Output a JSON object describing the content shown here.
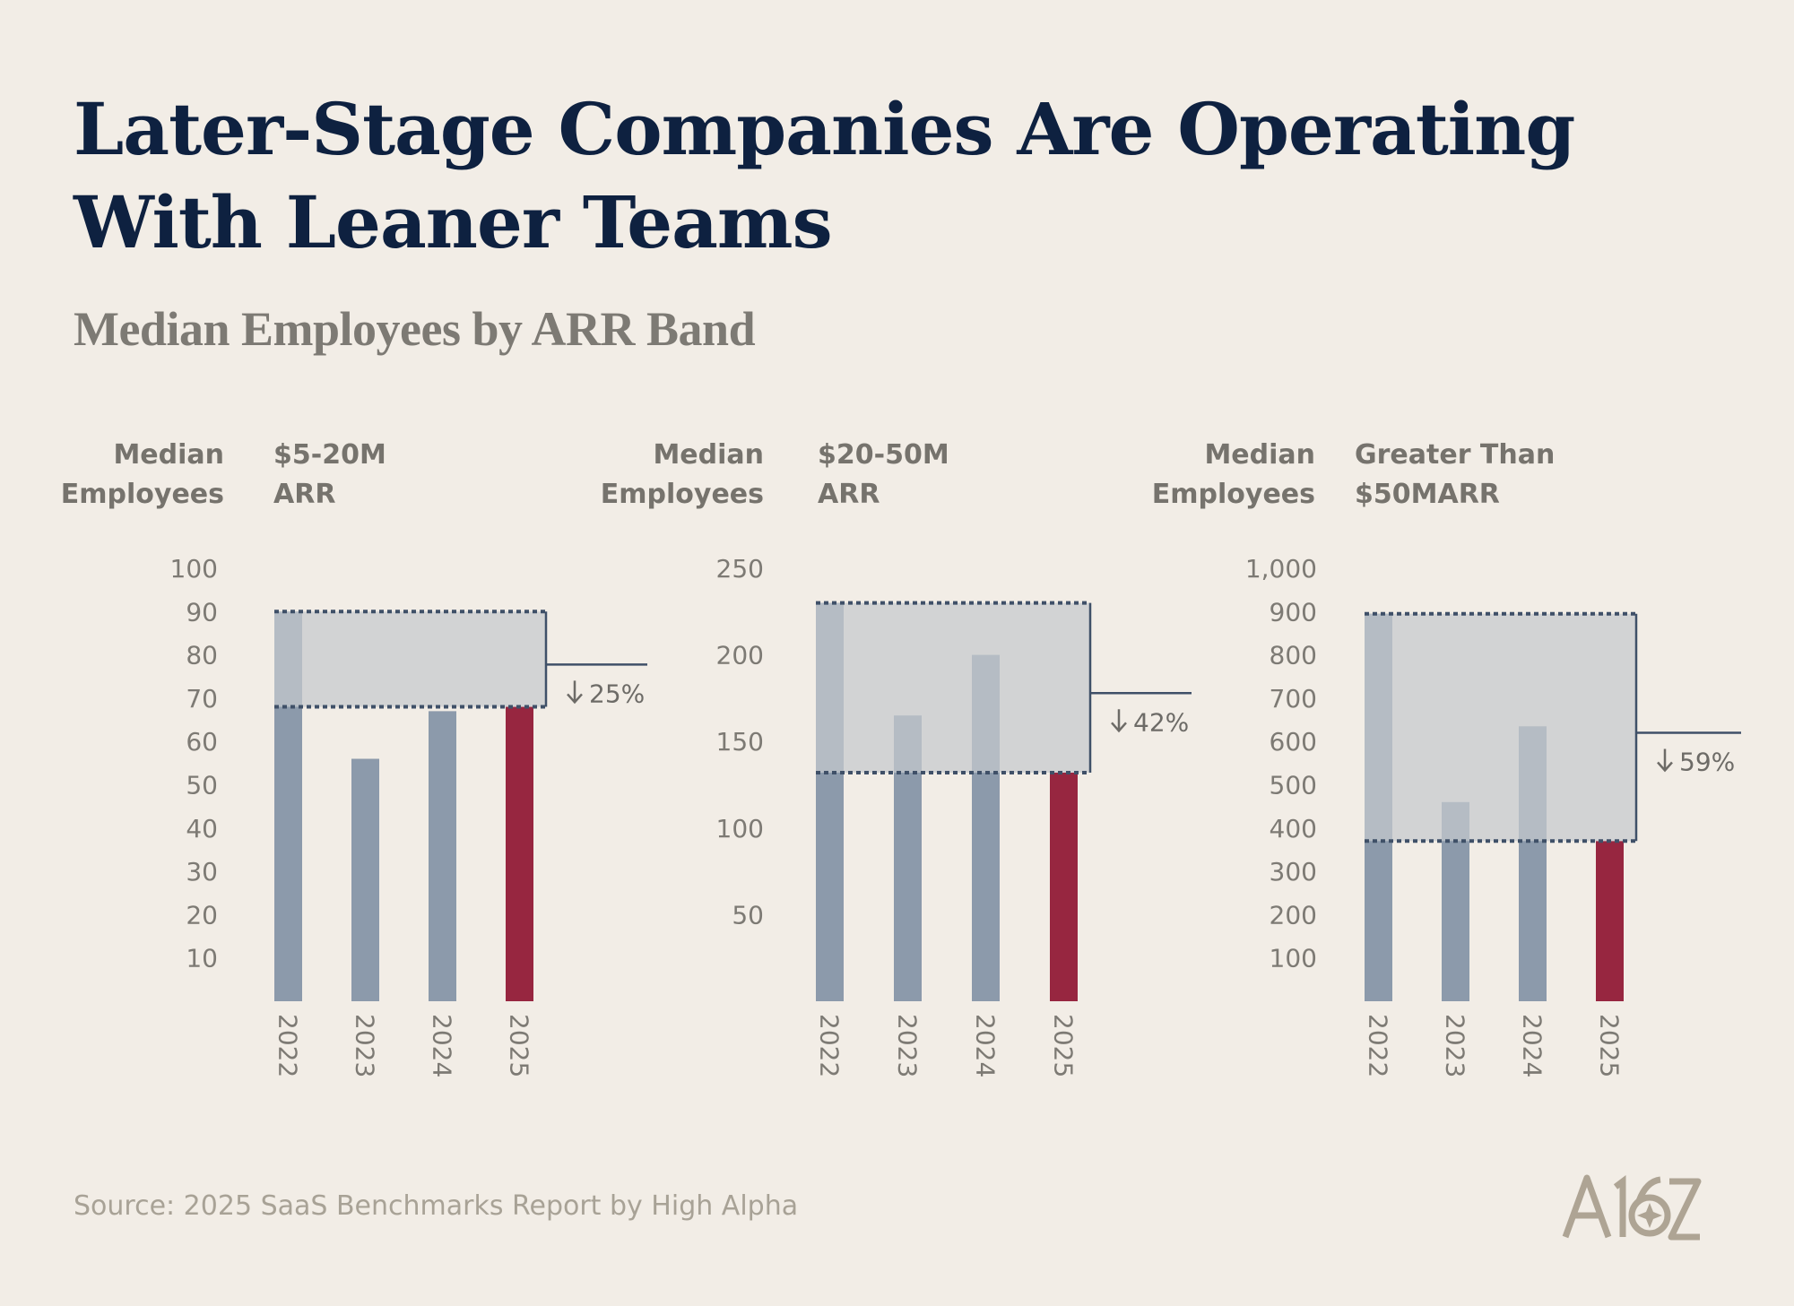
{
  "title": "Later-Stage Companies Are Operating With Leaner Teams",
  "subtitle": "Median Employees by ARR Band",
  "source": "Source: 2025 SaaS Benchmarks Report by High Alpha",
  "logo_text": "A16Z",
  "colors": {
    "background": "#f2ede6",
    "bar": "#8c9aab",
    "highlight_bar": "#972640",
    "band": "#c5c9cd",
    "band_border": "#3f5068",
    "title": "#0e2140",
    "muted_text": "#7d7a74"
  },
  "chart_data": [
    {
      "type": "bar",
      "axis_title": [
        "Median",
        "Employees"
      ],
      "title": [
        "$5-20M",
        "ARR"
      ],
      "ylabel": "Median Employees",
      "categories": [
        "2022",
        "2023",
        "2024",
        "2025"
      ],
      "values": [
        90,
        56,
        67,
        68
      ],
      "highlight_category": "2025",
      "ylim": [
        0,
        100
      ],
      "yticks": [
        10,
        20,
        30,
        40,
        50,
        60,
        70,
        80,
        90,
        100
      ],
      "ytick_labels": [
        "10",
        "20",
        "30",
        "40",
        "50",
        "60",
        "70",
        "80",
        "90",
        "100"
      ],
      "band_range": [
        68,
        90
      ],
      "change_label": "25%",
      "change_direction": "down"
    },
    {
      "type": "bar",
      "axis_title": [
        "Median",
        "Employees"
      ],
      "title": [
        "$20-50M",
        "ARR"
      ],
      "ylabel": "Median Employees",
      "categories": [
        "2022",
        "2023",
        "2024",
        "2025"
      ],
      "values": [
        230,
        165,
        200,
        132
      ],
      "highlight_category": "2025",
      "ylim": [
        0,
        250
      ],
      "yticks": [
        50,
        100,
        150,
        200,
        250
      ],
      "ytick_labels": [
        "50",
        "100",
        "150",
        "200",
        "250"
      ],
      "band_range": [
        132,
        230
      ],
      "change_label": "42%",
      "change_direction": "down"
    },
    {
      "type": "bar",
      "axis_title": [
        "Median",
        "Employees"
      ],
      "title": [
        "Greater Than",
        "$50MARR"
      ],
      "ylabel": "Median Employees",
      "categories": [
        "2022",
        "2023",
        "2024",
        "2025"
      ],
      "values": [
        895,
        460,
        635,
        370
      ],
      "highlight_category": "2025",
      "ylim": [
        0,
        1000
      ],
      "yticks": [
        100,
        200,
        300,
        400,
        500,
        600,
        700,
        800,
        900,
        1000
      ],
      "ytick_labels": [
        "100",
        "200",
        "300",
        "400",
        "500",
        "600",
        "700",
        "800",
        "900",
        "1,000"
      ],
      "band_range": [
        370,
        895
      ],
      "change_label": "59%",
      "change_direction": "down"
    }
  ]
}
